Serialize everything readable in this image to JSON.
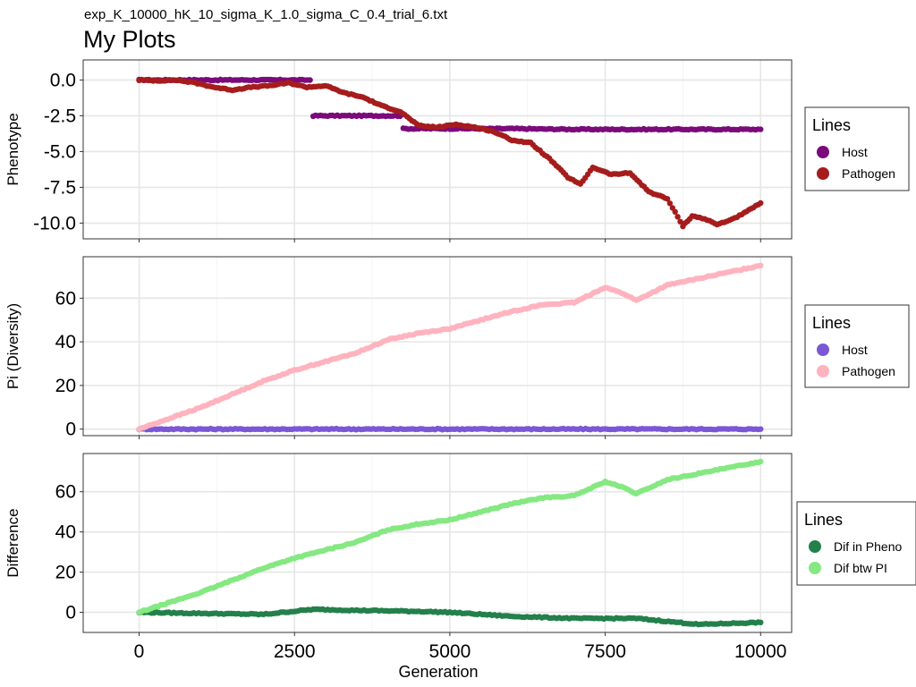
{
  "subtitle": "exp_K_10000_hK_10_sigma_K_1.0_sigma_C_0.4_trial_6.txt",
  "title": "My Plots",
  "xlabel": "Generation",
  "chart_data": [
    {
      "type": "scatter",
      "ylabel": "Phenotype",
      "xlim": [
        -900,
        10500
      ],
      "ylim": [
        -11.1,
        1.4
      ],
      "xticks": [
        0,
        2500,
        5000,
        7500,
        10000
      ],
      "yticks": [
        0.0,
        -2.5,
        -5.0,
        -7.5,
        -10.0
      ],
      "ytick_labels": [
        "0.0",
        "-2.5",
        "-5.0",
        "-7.5",
        "-10.0"
      ],
      "grid": true,
      "legend": {
        "title": "Lines",
        "position": "right"
      },
      "series": [
        {
          "name": "Host",
          "color": "#7B0A7B",
          "x": [
            0,
            500,
            1000,
            1500,
            2000,
            2500,
            2750,
            2800,
            3500,
            4200,
            4250,
            4500,
            5000,
            6000,
            7000,
            7500,
            8000,
            9000,
            10000
          ],
          "y": [
            0,
            0,
            0,
            0,
            0,
            0,
            0,
            -2.5,
            -2.5,
            -2.5,
            -3.4,
            -3.4,
            -3.4,
            -3.4,
            -3.45,
            -3.45,
            -3.45,
            -3.45,
            -3.45
          ]
        },
        {
          "name": "Pathogen",
          "color": "#A61C1C",
          "x": [
            0,
            300,
            600,
            900,
            1200,
            1500,
            1800,
            2100,
            2400,
            2700,
            3000,
            3300,
            3600,
            3900,
            4200,
            4500,
            4800,
            5100,
            5400,
            5700,
            6000,
            6300,
            6600,
            6900,
            7100,
            7300,
            7600,
            7900,
            8200,
            8500,
            8750,
            8900,
            9100,
            9300,
            9500,
            9700,
            10000
          ],
          "y": [
            0,
            -0.05,
            0,
            -0.2,
            -0.5,
            -0.7,
            -0.5,
            -0.4,
            -0.2,
            -0.5,
            -0.4,
            -0.9,
            -1.2,
            -1.8,
            -2.2,
            -3.2,
            -3.3,
            -3.1,
            -3.3,
            -3.6,
            -4.2,
            -4.4,
            -5.5,
            -6.8,
            -7.3,
            -6.1,
            -6.6,
            -6.5,
            -7.8,
            -8.3,
            -10.2,
            -9.5,
            -9.7,
            -10.1,
            -9.8,
            -9.4,
            -8.6
          ]
        }
      ]
    },
    {
      "type": "scatter",
      "ylabel": "Pi (Diversity)",
      "xlim": [
        -900,
        10500
      ],
      "ylim": [
        -3,
        79
      ],
      "xticks": [
        0,
        2500,
        5000,
        7500,
        10000
      ],
      "yticks": [
        0,
        20,
        40,
        60
      ],
      "ytick_labels": [
        "0",
        "20",
        "40",
        "60"
      ],
      "grid": true,
      "legend": {
        "title": "Lines",
        "position": "right"
      },
      "series": [
        {
          "name": "Host",
          "color": "#7B57D6",
          "x": [
            0,
            2500,
            5000,
            7500,
            10000
          ],
          "y": [
            0,
            0,
            0,
            0,
            0
          ]
        },
        {
          "name": "Pathogen",
          "color": "#FFB3BE",
          "x": [
            0,
            500,
            1000,
            1500,
            2000,
            2500,
            3000,
            3500,
            4000,
            4500,
            5000,
            5500,
            6000,
            6500,
            7000,
            7500,
            7800,
            8000,
            8500,
            9000,
            9500,
            10000
          ],
          "y": [
            0,
            5,
            10,
            16,
            22,
            27,
            31,
            35,
            41,
            44,
            46,
            50,
            54,
            57,
            58,
            65,
            62,
            59,
            66,
            69,
            72,
            75
          ]
        }
      ]
    },
    {
      "type": "scatter",
      "ylabel": "Difference",
      "xlim": [
        -900,
        10500
      ],
      "ylim": [
        -10,
        79
      ],
      "xticks": [
        0,
        2500,
        5000,
        7500,
        10000
      ],
      "yticks": [
        0,
        20,
        40,
        60
      ],
      "ytick_labels": [
        "0",
        "20",
        "40",
        "60"
      ],
      "xtick_labels": [
        "0",
        "2500",
        "5000",
        "7500",
        "10000"
      ],
      "grid": true,
      "legend": {
        "title": "Lines",
        "position": "right"
      },
      "series": [
        {
          "name": "Dif in Pheno",
          "color": "#23804A",
          "x": [
            0,
            1000,
            2000,
            2800,
            3500,
            4500,
            5000,
            6000,
            7000,
            8000,
            9000,
            10000
          ],
          "y": [
            0,
            -0.5,
            -1,
            1.5,
            1,
            0.5,
            0,
            -2,
            -3,
            -3,
            -6,
            -5
          ]
        },
        {
          "name": "Dif btw PI",
          "color": "#85E882",
          "x": [
            0,
            500,
            1000,
            1500,
            2000,
            2500,
            3000,
            3500,
            4000,
            4500,
            5000,
            5500,
            6000,
            6500,
            7000,
            7500,
            7800,
            8000,
            8500,
            9000,
            9500,
            10000
          ],
          "y": [
            0,
            5,
            10,
            16,
            22,
            27,
            31,
            35,
            41,
            44,
            46,
            50,
            54,
            57,
            58,
            65,
            62,
            59,
            66,
            69,
            72,
            75
          ]
        }
      ]
    }
  ]
}
